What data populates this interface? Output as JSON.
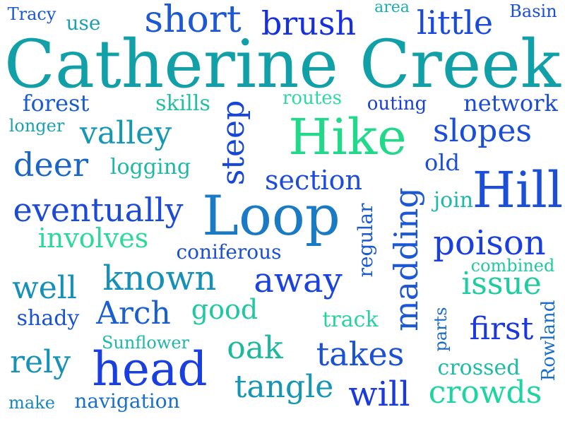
{
  "word_cloud": {
    "words": [
      {
        "text": "Catherine Creek",
        "color": "#12a0a8"
      },
      {
        "text": "Hike",
        "color": "#22d88a"
      },
      {
        "text": "Loop",
        "color": "#1a7ac4"
      },
      {
        "text": "Hill",
        "color": "#1b4fd8"
      },
      {
        "text": "head",
        "color": "#1a3fe0"
      },
      {
        "text": "steep",
        "color": "#1646d8"
      },
      {
        "text": "madding",
        "color": "#1d58d4"
      },
      {
        "text": "short",
        "color": "#1d58d4"
      },
      {
        "text": "brush",
        "color": "#1630e0"
      },
      {
        "text": "little",
        "color": "#1a4ad8"
      },
      {
        "text": "slopes",
        "color": "#1a4ed8"
      },
      {
        "text": "valley",
        "color": "#1498b6"
      },
      {
        "text": "deer",
        "color": "#1a66c8"
      },
      {
        "text": "section",
        "color": "#1c4cd8"
      },
      {
        "text": "eventually",
        "color": "#1c4ad8"
      },
      {
        "text": "poison",
        "color": "#1a3ee0"
      },
      {
        "text": "involves",
        "color": "#2cd89a"
      },
      {
        "text": "known",
        "color": "#1690b8"
      },
      {
        "text": "away",
        "color": "#1a42dc"
      },
      {
        "text": "well",
        "color": "#1590b8"
      },
      {
        "text": "Arch",
        "color": "#1a5ed0"
      },
      {
        "text": "good",
        "color": "#1ec8a0"
      },
      {
        "text": "issue",
        "color": "#1ecca0"
      },
      {
        "text": "first",
        "color": "#1a38de"
      },
      {
        "text": "oak",
        "color": "#1eb89c"
      },
      {
        "text": "takes",
        "color": "#1a52d4"
      },
      {
        "text": "rely",
        "color": "#1692b6"
      },
      {
        "text": "tangle",
        "color": "#1596b4"
      },
      {
        "text": "will",
        "color": "#1a3ade"
      },
      {
        "text": "crowds",
        "color": "#1ed4a0"
      },
      {
        "text": "forest",
        "color": "#1a5cd0"
      },
      {
        "text": "network",
        "color": "#1a4cd8"
      },
      {
        "text": "regular",
        "color": "#1a5ad2"
      },
      {
        "text": "coniferous",
        "color": "#1a50d6"
      },
      {
        "text": "navigation",
        "color": "#1a70c8"
      },
      {
        "text": "Rowland",
        "color": "#1a6ec8"
      },
      {
        "text": "crossed",
        "color": "#1ebca4"
      },
      {
        "text": "Tracy",
        "color": "#1a58d2"
      },
      {
        "text": "use",
        "color": "#1aa0b0"
      },
      {
        "text": "area",
        "color": "#1aaeae"
      },
      {
        "text": "Basin",
        "color": "#1a50d6"
      },
      {
        "text": "skills",
        "color": "#22c0a0"
      },
      {
        "text": "routes",
        "color": "#2cd8a4"
      },
      {
        "text": "outing",
        "color": "#1a40dc"
      },
      {
        "text": "longer",
        "color": "#1aa2ae"
      },
      {
        "text": "logging",
        "color": "#1eb8a4"
      },
      {
        "text": "old",
        "color": "#1a50d6"
      },
      {
        "text": "join",
        "color": "#1eb8a8"
      },
      {
        "text": "combined",
        "color": "#22c8a0"
      },
      {
        "text": "shady",
        "color": "#1a52d4"
      },
      {
        "text": "track",
        "color": "#2ad0a0"
      },
      {
        "text": "parts",
        "color": "#1a6ac8"
      },
      {
        "text": "Sunflower",
        "color": "#1eb8a8"
      },
      {
        "text": "make",
        "color": "#1a88bc"
      }
    ]
  }
}
